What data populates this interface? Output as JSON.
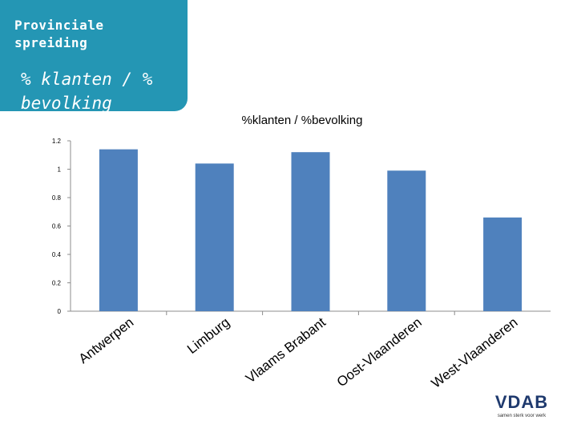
{
  "slide": {
    "panel_title": "Provinciale spreiding",
    "panel_subtitle": "% klanten / % bevolking"
  },
  "colors": {
    "panel": "#2496b4",
    "bar": "#4f81bd",
    "logo": "#1f3a6e"
  },
  "logo": {
    "name": "VDAB",
    "tagline": "samen sterk voor werk"
  },
  "chart_data": {
    "type": "bar",
    "title": "%klanten / %bevolking",
    "categories": [
      "Antwerpen",
      "Limburg",
      "Vlaams Brabant",
      "Oost-Vlaanderen",
      "West-Vlaanderen"
    ],
    "values": [
      1.14,
      1.04,
      1.12,
      0.99,
      0.66
    ],
    "ylim": [
      0,
      1.2
    ],
    "yticks": [
      "0",
      "0.2",
      "0.4",
      "0.6",
      "0.8",
      "1",
      "1.2"
    ],
    "grid": false,
    "legend": "none"
  }
}
